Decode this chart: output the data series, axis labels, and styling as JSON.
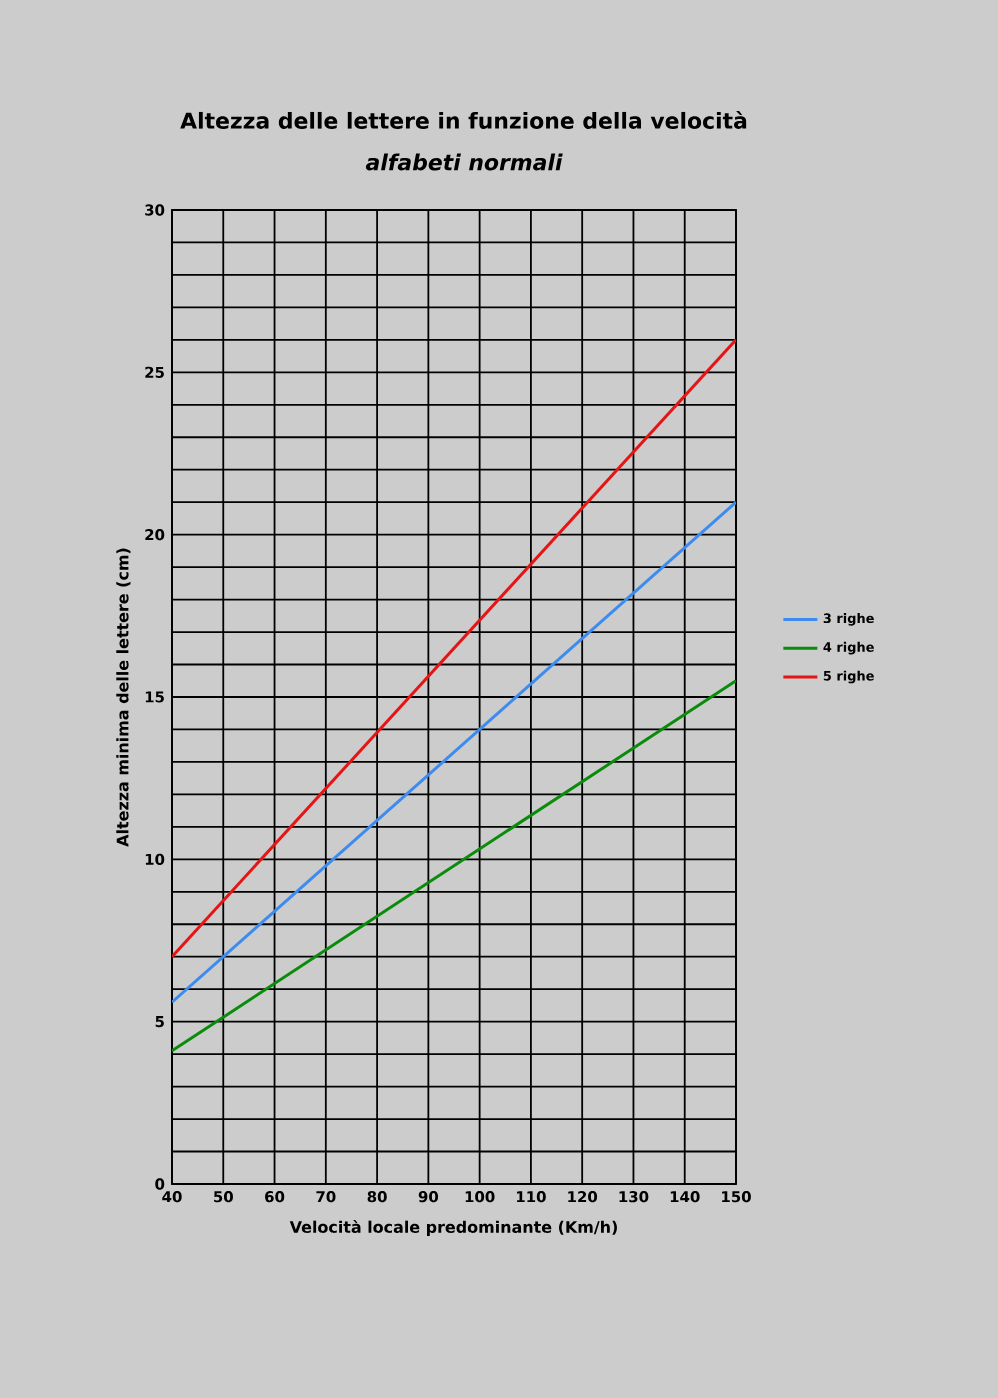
{
  "chart_data": {
    "type": "line",
    "title": "Altezza delle lettere in funzione della velocità",
    "subtitle": "alfabeti normali",
    "xlabel": "Velocità locale predominante (Km/h)",
    "ylabel": "Altezza minima delle lettere (cm)",
    "x": [
      40,
      150
    ],
    "series": [
      {
        "name": "3 righe",
        "color": "#3c8cf0",
        "values": [
          5.6,
          21
        ]
      },
      {
        "name": "4 righe",
        "color": "#0a8c0a",
        "values": [
          4.1,
          15.5
        ]
      },
      {
        "name": "5 righe",
        "color": "#e61414",
        "values": [
          7,
          26
        ]
      }
    ],
    "xlim": [
      40,
      150
    ],
    "ylim": [
      0,
      30
    ],
    "xticks": [
      40,
      50,
      60,
      70,
      80,
      90,
      100,
      110,
      120,
      130,
      140,
      150
    ],
    "yticks": [
      0,
      {
        "value": 1,
        "label": null
      },
      {
        "value": 2,
        "label": null
      },
      {
        "value": 3,
        "label": null
      },
      {
        "value": 4,
        "label": null
      },
      5,
      {
        "value": 6,
        "label": null
      },
      {
        "value": 7,
        "label": null
      },
      {
        "value": 8,
        "label": null
      },
      {
        "value": 9,
        "label": null
      },
      10,
      {
        "value": 11,
        "label": null
      },
      {
        "value": 12,
        "label": null
      },
      {
        "value": 13,
        "label": null
      },
      {
        "value": 14,
        "label": null
      },
      15,
      {
        "value": 16,
        "label": null
      },
      {
        "value": 17,
        "label": null
      },
      {
        "value": 18,
        "label": null
      },
      {
        "value": 19,
        "label": null
      },
      20,
      {
        "value": 21,
        "label": null
      },
      {
        "value": 22,
        "label": null
      },
      {
        "value": 23,
        "label": null
      },
      {
        "value": 24,
        "label": null
      },
      25,
      {
        "value": 26,
        "label": null
      },
      {
        "value": 27,
        "label": null
      },
      {
        "value": 28,
        "label": null
      },
      {
        "value": 29,
        "label": null
      },
      30
    ],
    "grid": true,
    "legend": "right",
    "marker": "none",
    "line_style": "solid"
  }
}
